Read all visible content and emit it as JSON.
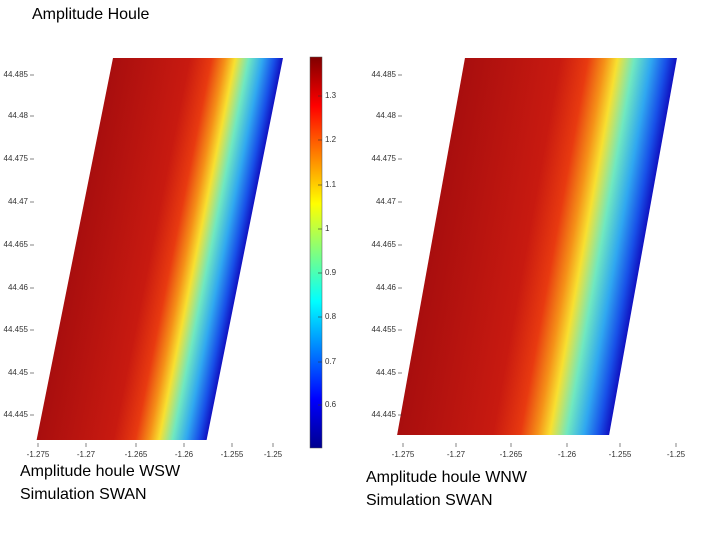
{
  "title": "Amplitude Houle",
  "panels": [
    {
      "caption": [
        "Amplitude houle WSW",
        "Simulation SWAN"
      ],
      "yticks": [
        "44.485",
        "44.48",
        "44.475",
        "44.47",
        "44.465",
        "44.46",
        "44.455",
        "44.45",
        "44.445"
      ],
      "xticks": [
        "-1.275",
        "-1.27",
        "-1.265",
        "-1.26",
        "-1.255",
        "-1.25"
      ]
    },
    {
      "caption": [
        "Amplitude houle WNW",
        "Simulation SWAN"
      ],
      "yticks": [
        "44.485",
        "44.48",
        "44.475",
        "44.47",
        "44.465",
        "44.46",
        "44.455",
        "44.45",
        "44.445"
      ],
      "xticks": [
        "-1.275",
        "-1.27",
        "-1.265",
        "-1.26",
        "-1.255",
        "-1.25"
      ]
    }
  ],
  "colorbar": {
    "ticks": [
      "1.3",
      "1.2",
      "1.1",
      "1",
      "0.9",
      "0.8",
      "0.7",
      "0.6"
    ]
  }
}
